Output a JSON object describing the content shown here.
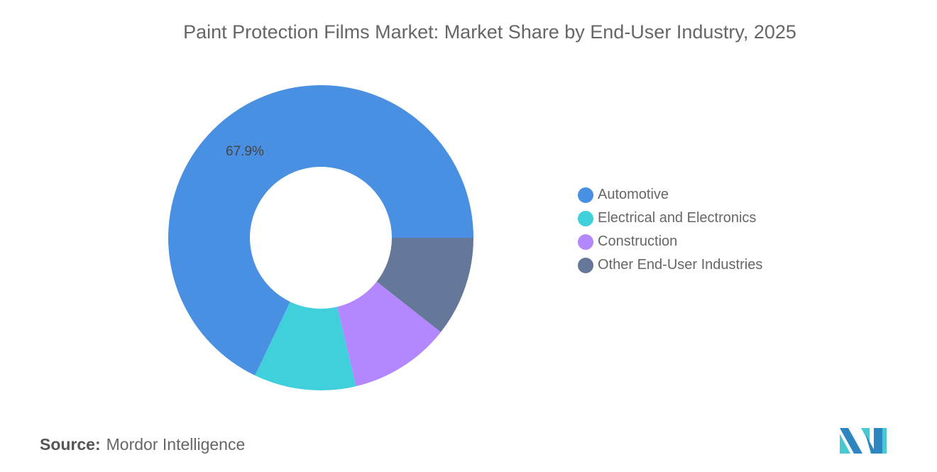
{
  "chart_data": {
    "type": "pie",
    "donut": true,
    "title": "Paint Protection Films Market: Market Share by End-User Industry, 2025",
    "categories": [
      "Automotive",
      "Electrical and Electronics",
      "Construction",
      "Other End-User Industries"
    ],
    "values": [
      67.9,
      10.8,
      10.7,
      10.6
    ],
    "colors": [
      "#4A90E2",
      "#40D0DB",
      "#B388FF",
      "#657899"
    ],
    "data_labels": [
      "67.9%",
      "",
      "",
      ""
    ],
    "legend_position": "right"
  },
  "source": {
    "label": "Source:",
    "value": "Mordor Intelligence"
  },
  "logo": {
    "name": "mordor-intelligence-logo",
    "colors": [
      "#2E86C1",
      "#48C9D0"
    ]
  }
}
